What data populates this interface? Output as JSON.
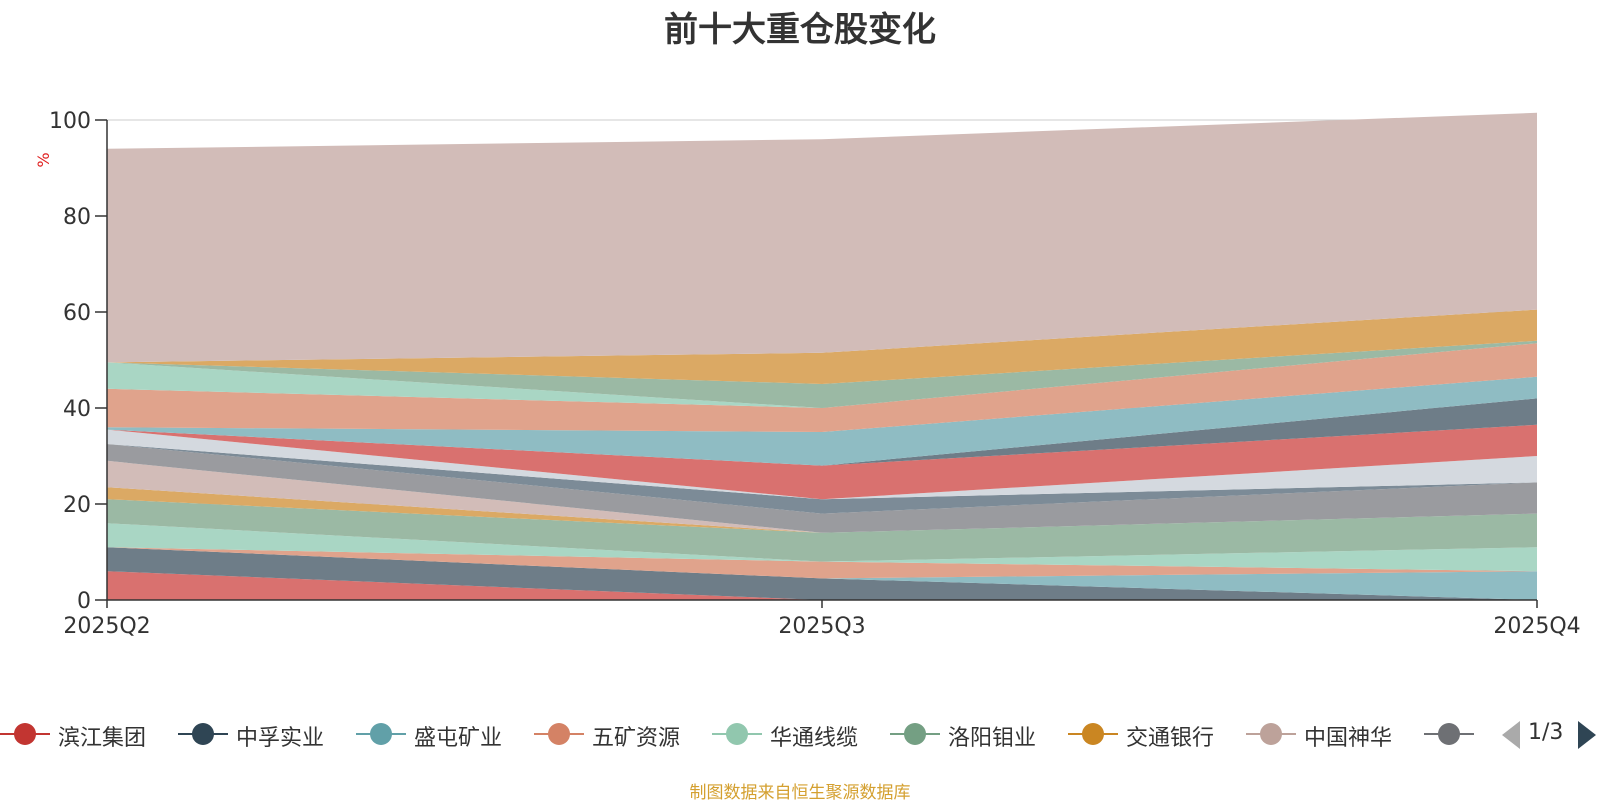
{
  "chart_data": {
    "type": "area",
    "stacked": true,
    "title": "前十大重仓股变化",
    "ylabel": "%",
    "ylim": [
      0,
      100
    ],
    "yticks": [
      0,
      20,
      40,
      60,
      80,
      100
    ],
    "categories": [
      "2025Q2",
      "2025Q3",
      "2025Q4"
    ],
    "grid": true,
    "legend_position": "bottom",
    "legend_page": "1/3",
    "series": [
      {
        "name": "滨江集团",
        "color": "#d9716f",
        "values": [
          6,
          0,
          0
        ]
      },
      {
        "name": "中孚实业",
        "color": "#6e7d88",
        "values": [
          5,
          4.5,
          0
        ]
      },
      {
        "name": "盛屯矿业",
        "color": "#8fbcc3",
        "values": [
          0,
          0,
          6
        ]
      },
      {
        "name": "五矿资源",
        "color": "#e0a38c",
        "values": [
          0,
          3.5,
          0
        ]
      },
      {
        "name": "华通线缆",
        "color": "#a9d6c4",
        "values": [
          5,
          0,
          5
        ]
      },
      {
        "name": "洛阳钼业",
        "color": "#9bb9a4",
        "values": [
          5,
          6,
          7
        ]
      },
      {
        "name": "交通银行",
        "color": "#dba964",
        "values": [
          2.5,
          0,
          0
        ]
      },
      {
        "name": "中国神华",
        "color": "#d2bcb8",
        "values": [
          5.5,
          0,
          0
        ]
      },
      {
        "name": "",
        "color": "#9a9b9f",
        "values": [
          3.5,
          4,
          6.5
        ]
      },
      {
        "name": "",
        "color": "#7c8b97",
        "values": [
          0,
          3,
          0
        ]
      },
      {
        "name": "",
        "color": "#d4d9df",
        "values": [
          3,
          0,
          5.5
        ]
      },
      {
        "name": "",
        "color": "#d9716f",
        "values": [
          0,
          7,
          6.5
        ]
      },
      {
        "name": "",
        "color": "#6e7d88",
        "values": [
          0,
          0,
          5.5
        ]
      },
      {
        "name": "",
        "color": "#8fbcc3",
        "values": [
          0.5,
          7,
          4.5
        ]
      },
      {
        "name": "",
        "color": "#e0a38c",
        "values": [
          8,
          5,
          7
        ]
      },
      {
        "name": "",
        "color": "#a9d6c4",
        "values": [
          5.5,
          0,
          0
        ]
      },
      {
        "name": "",
        "color": "#9bb9a4",
        "values": [
          0,
          5,
          0.5
        ]
      },
      {
        "name": "",
        "color": "#dba964",
        "values": [
          0,
          6.5,
          6.5
        ]
      },
      {
        "name": "",
        "color": "#d2bcb8",
        "values": [
          44.5,
          44.5,
          41
        ]
      }
    ],
    "legend": [
      {
        "name": "滨江集团",
        "color": "#c23531"
      },
      {
        "name": "中孚实业",
        "color": "#2f4554"
      },
      {
        "name": "盛屯矿业",
        "color": "#61a0a8"
      },
      {
        "name": "五矿资源",
        "color": "#d48265"
      },
      {
        "name": "华通线缆",
        "color": "#91c7ae"
      },
      {
        "name": "洛阳钼业",
        "color": "#749f83"
      },
      {
        "name": "交通银行",
        "color": "#ca8622"
      },
      {
        "name": "中国神华",
        "color": "#bda29a"
      },
      {
        "name": "",
        "color": "#6e7074"
      }
    ],
    "source": "制图数据来自恒生聚源数据库"
  }
}
